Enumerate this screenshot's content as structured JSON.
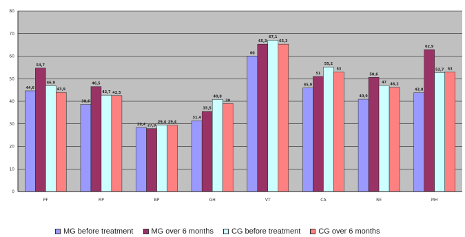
{
  "chart_data": {
    "type": "bar",
    "categories": [
      "PF",
      "RP",
      "BP",
      "GH",
      "VT",
      "CA",
      "RE",
      "MH"
    ],
    "series": [
      {
        "name": "MG before treatment",
        "color": "#9999ff",
        "values": [
          44.6,
          38.6,
          28.4,
          31.4,
          60,
          45.9,
          40.9,
          43.8
        ]
      },
      {
        "name": "MG over 6 months",
        "color": "#993366",
        "values": [
          54.7,
          46.5,
          27.9,
          35.5,
          65.3,
          51,
          50.6,
          62.9
        ]
      },
      {
        "name": "CG before treatment",
        "color": "#ccffff",
        "values": [
          46.9,
          42.7,
          29.4,
          40.8,
          67.1,
          55.2,
          47,
          52.7
        ]
      },
      {
        "name": "CG over 6 months",
        "color": "#ff8080",
        "values": [
          43.9,
          42.5,
          29.4,
          39,
          65.3,
          53,
          46.2,
          53
        ]
      }
    ],
    "data_labels": [
      [
        "44,6",
        "38,6",
        "28,4",
        "31,4",
        "60",
        "45,9",
        "40,9",
        "43,8"
      ],
      [
        "54,7",
        "46,5",
        "27,9",
        "35,5",
        "65,3",
        "51",
        "50,6",
        "62,9"
      ],
      [
        "46,9",
        "42,7",
        "29,4",
        "40,8",
        "67,1",
        "55,2",
        "47",
        "52,7"
      ],
      [
        "43,9",
        "42,5",
        "29,4",
        "39",
        "65,3",
        "53",
        "46,2",
        "53"
      ]
    ],
    "y_ticks": [
      "0",
      "10",
      "20",
      "30",
      "40",
      "50",
      "60",
      "70",
      "80"
    ],
    "ylim": [
      0,
      80
    ],
    "grid": true,
    "plot_background": "#c0c0c0",
    "legend_position": "bottom",
    "title": "",
    "xlabel": "",
    "ylabel": ""
  }
}
